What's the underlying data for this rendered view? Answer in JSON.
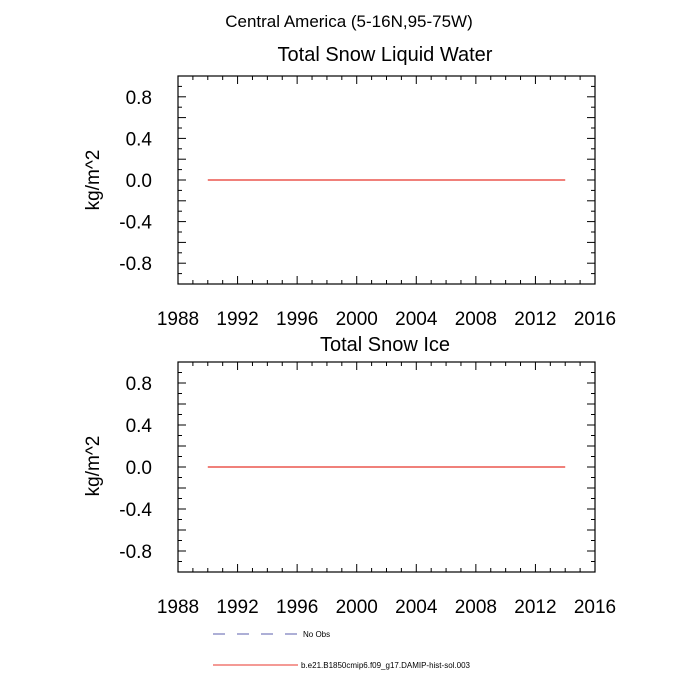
{
  "figure": {
    "suptitle": "Central America (5-16N,95-75W)"
  },
  "chart_data": [
    {
      "type": "line",
      "title": "Total Snow Liquid Water",
      "xlabel": "",
      "ylabel": "kg/m^2",
      "xlim": [
        1988,
        2016
      ],
      "ylim": [
        -1.0,
        1.0
      ],
      "xticks": [
        "1988",
        "1992",
        "1996",
        "2000",
        "2004",
        "2008",
        "2012",
        "2016"
      ],
      "yticks": [
        "0.8",
        "0.4",
        "0.0",
        "-0.4",
        "-0.8"
      ],
      "series": [
        {
          "name": "b.e21.B1850cmip6.f09_g17.DAMIP-hist-sol.003",
          "color": "#e8352b",
          "x": [
            1990,
            2014
          ],
          "y": [
            0.0,
            0.0
          ]
        }
      ]
    },
    {
      "type": "line",
      "title": "Total Snow Ice",
      "xlabel": "",
      "ylabel": "kg/m^2",
      "xlim": [
        1988,
        2016
      ],
      "ylim": [
        -1.0,
        1.0
      ],
      "xticks": [
        "1988",
        "1992",
        "1996",
        "2000",
        "2004",
        "2008",
        "2012",
        "2016"
      ],
      "yticks": [
        "0.8",
        "0.4",
        "0.0",
        "-0.4",
        "-0.8"
      ],
      "series": [
        {
          "name": "b.e21.B1850cmip6.f09_g17.DAMIP-hist-sol.003",
          "color": "#e8352b",
          "x": [
            1990,
            2014
          ],
          "y": [
            0.0,
            0.0
          ]
        }
      ]
    }
  ],
  "legend": {
    "items": [
      {
        "label": "No Obs",
        "style": "dashed",
        "color": "#5b5fae"
      },
      {
        "label": "b.e21.B1850cmip6.f09_g17.DAMIP-hist-sol.003",
        "style": "solid",
        "color": "#e8352b"
      }
    ]
  }
}
